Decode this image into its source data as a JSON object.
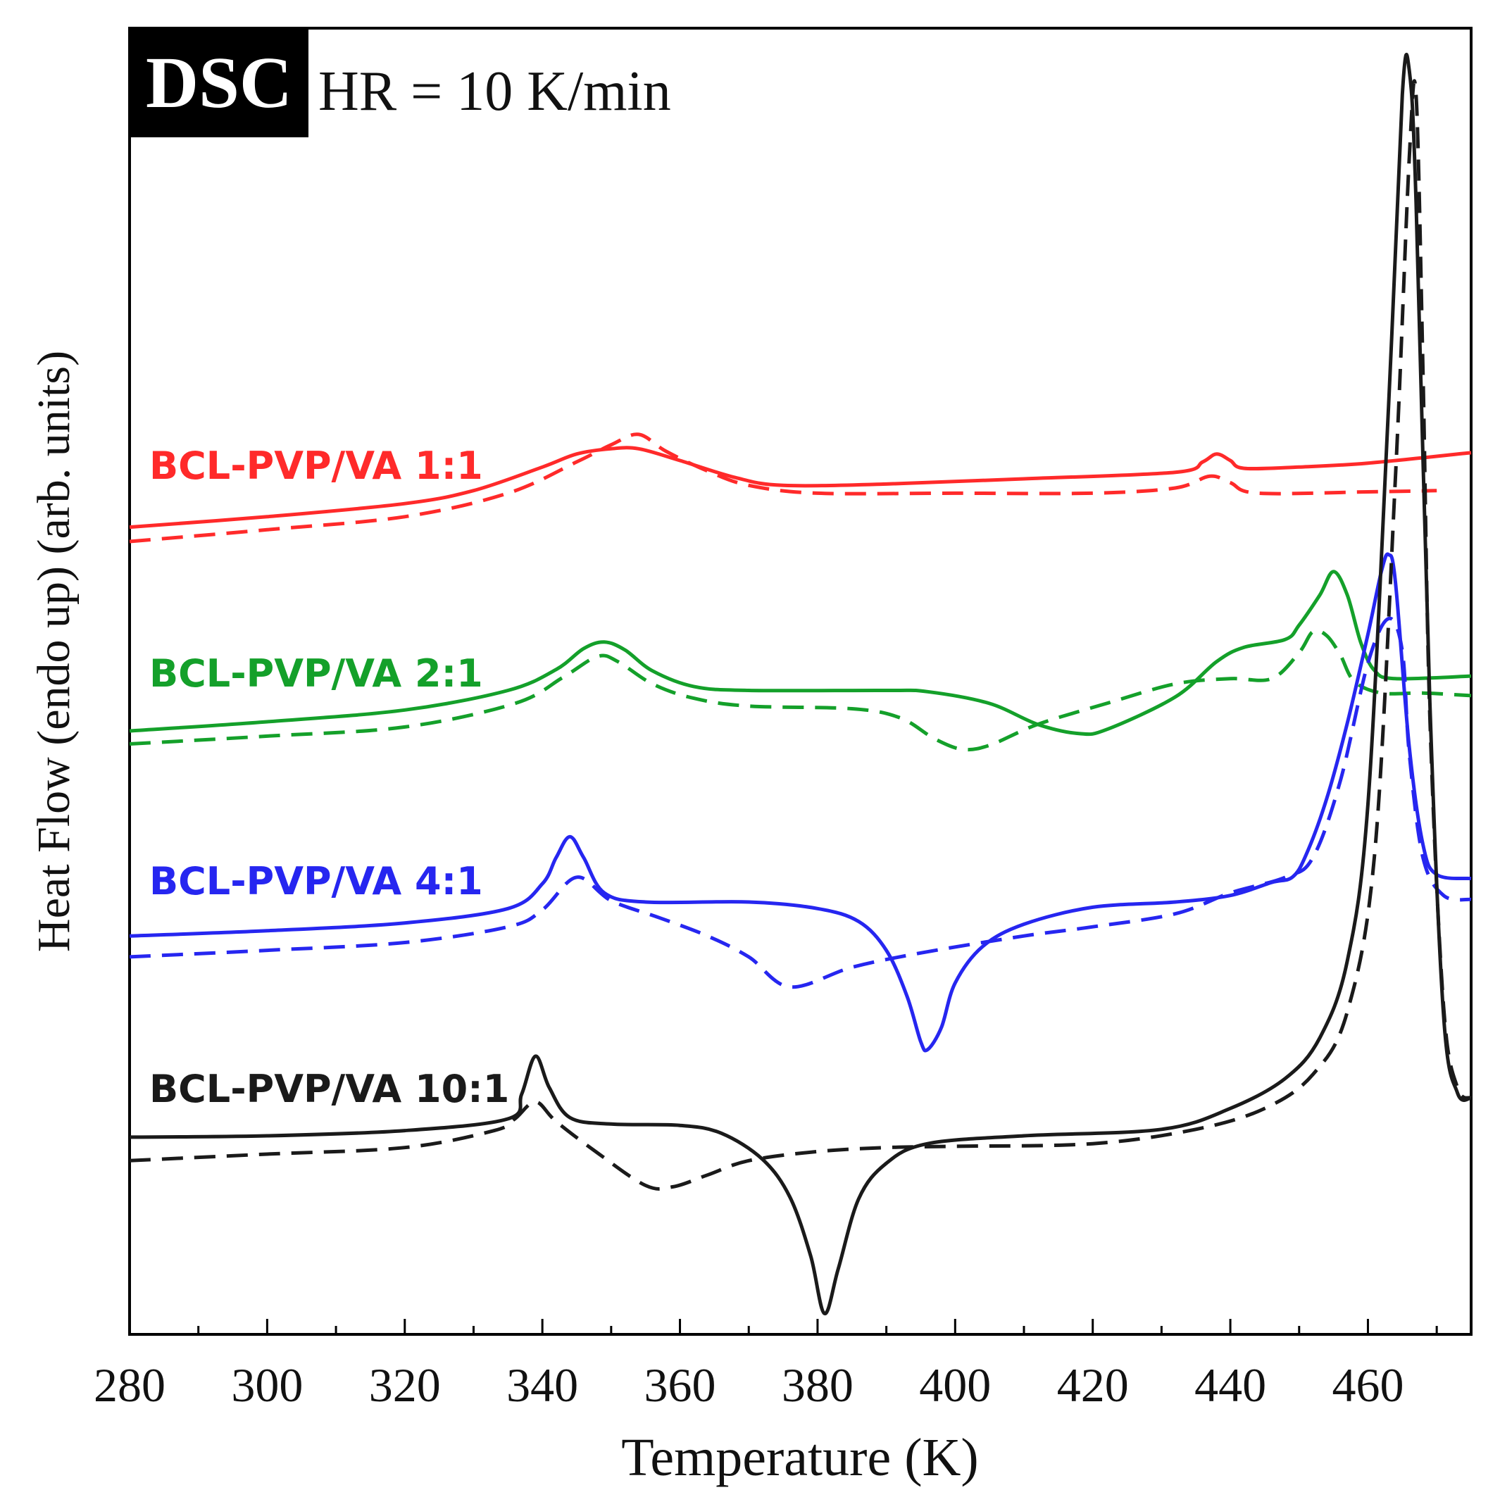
{
  "chart_data": {
    "type": "line",
    "panel_tag": "DSC",
    "subtitle": "HR = 10 K/min",
    "xlabel": "Temperature (K)",
    "ylabel": "Heat Flow (endo up) (arb. units)",
    "xlim": [
      280,
      475
    ],
    "ylim": [
      0,
      100
    ],
    "x_ticks": [
      280,
      300,
      320,
      340,
      360,
      380,
      400,
      420,
      440,
      460
    ],
    "x_tick_labels": [
      "280",
      "300",
      "320",
      "340",
      "360",
      "380",
      "400",
      "420",
      "440",
      "460"
    ],
    "y_tick_labels": false,
    "grid": false,
    "legend": "inline labels at left, one per curve group",
    "series": [
      {
        "name": "BCL-PVP/VA 1:1",
        "color": "#ff2a2a",
        "style": "solid",
        "points": [
          [
            280,
            61.8
          ],
          [
            300,
            62.6
          ],
          [
            320,
            63.6
          ],
          [
            330,
            64.6
          ],
          [
            340,
            66.4
          ],
          [
            345,
            67.4
          ],
          [
            350,
            67.8
          ],
          [
            354,
            67.8
          ],
          [
            360,
            66.9
          ],
          [
            368,
            65.6
          ],
          [
            375,
            65.0
          ],
          [
            390,
            65.1
          ],
          [
            410,
            65.5
          ],
          [
            432,
            66.0
          ],
          [
            436,
            66.8
          ],
          [
            438,
            67.4
          ],
          [
            440,
            66.9
          ],
          [
            442,
            66.3
          ],
          [
            450,
            66.4
          ],
          [
            460,
            66.7
          ],
          [
            475,
            67.5
          ]
        ]
      },
      {
        "name": "BCL-PVP/VA 1:1",
        "color": "#ff2a2a",
        "style": "dashed",
        "points": [
          [
            280,
            60.7
          ],
          [
            300,
            61.6
          ],
          [
            320,
            62.6
          ],
          [
            335,
            64.4
          ],
          [
            345,
            66.8
          ],
          [
            350,
            68.1
          ],
          [
            354,
            68.9
          ],
          [
            358,
            67.6
          ],
          [
            364,
            66.1
          ],
          [
            370,
            65.0
          ],
          [
            380,
            64.4
          ],
          [
            400,
            64.4
          ],
          [
            420,
            64.4
          ],
          [
            432,
            64.8
          ],
          [
            437,
            65.7
          ],
          [
            440,
            65.2
          ],
          [
            444,
            64.4
          ],
          [
            460,
            64.5
          ],
          [
            470,
            64.6
          ]
        ]
      },
      {
        "name": "BCL-PVP/VA 2:1",
        "color": "#14a02a",
        "style": "solid",
        "points": [
          [
            280,
            46.2
          ],
          [
            300,
            46.9
          ],
          [
            320,
            47.8
          ],
          [
            335,
            49.3
          ],
          [
            342,
            50.9
          ],
          [
            346,
            52.5
          ],
          [
            349,
            53.0
          ],
          [
            352,
            52.4
          ],
          [
            356,
            50.8
          ],
          [
            362,
            49.6
          ],
          [
            370,
            49.3
          ],
          [
            390,
            49.3
          ],
          [
            396,
            49.2
          ],
          [
            405,
            48.3
          ],
          [
            412,
            46.7
          ],
          [
            418,
            46.0
          ],
          [
            422,
            46.3
          ],
          [
            432,
            48.8
          ],
          [
            438,
            51.5
          ],
          [
            442,
            52.6
          ],
          [
            448,
            53.2
          ],
          [
            450,
            54.3
          ],
          [
            453,
            56.6
          ],
          [
            455,
            58.4
          ],
          [
            457,
            56.6
          ],
          [
            459,
            52.9
          ],
          [
            461,
            50.8
          ],
          [
            464,
            50.2
          ],
          [
            475,
            50.4
          ]
        ]
      },
      {
        "name": "BCL-PVP/VA 2:1",
        "color": "#14a02a",
        "style": "dashed",
        "points": [
          [
            280,
            45.2
          ],
          [
            300,
            45.8
          ],
          [
            320,
            46.5
          ],
          [
            336,
            48.3
          ],
          [
            343,
            50.3
          ],
          [
            348,
            51.9
          ],
          [
            351,
            51.5
          ],
          [
            356,
            49.8
          ],
          [
            362,
            48.7
          ],
          [
            370,
            48.1
          ],
          [
            385,
            47.9
          ],
          [
            392,
            47.2
          ],
          [
            397,
            45.6
          ],
          [
            401,
            44.8
          ],
          [
            405,
            45.1
          ],
          [
            412,
            46.7
          ],
          [
            422,
            48.3
          ],
          [
            432,
            49.8
          ],
          [
            440,
            50.2
          ],
          [
            446,
            50.2
          ],
          [
            450,
            52.2
          ],
          [
            452,
            53.8
          ],
          [
            454,
            53.5
          ],
          [
            456,
            52.0
          ],
          [
            458,
            50.0
          ],
          [
            462,
            49.1
          ],
          [
            468,
            49.1
          ],
          [
            475,
            48.9
          ]
        ]
      },
      {
        "name": "BCL-PVP/VA 4:1",
        "color": "#2626f0",
        "style": "solid",
        "points": [
          [
            280,
            30.5
          ],
          [
            300,
            30.9
          ],
          [
            320,
            31.5
          ],
          [
            335,
            32.6
          ],
          [
            340,
            34.5
          ],
          [
            342,
            36.5
          ],
          [
            344,
            38.1
          ],
          [
            346,
            36.5
          ],
          [
            349,
            33.8
          ],
          [
            355,
            33.1
          ],
          [
            370,
            33.1
          ],
          [
            380,
            32.6
          ],
          [
            386,
            31.6
          ],
          [
            390,
            29.4
          ],
          [
            393,
            25.9
          ],
          [
            395,
            22.4
          ],
          [
            396,
            21.8
          ],
          [
            398,
            23.5
          ],
          [
            400,
            26.9
          ],
          [
            404,
            29.7
          ],
          [
            410,
            31.4
          ],
          [
            420,
            32.7
          ],
          [
            432,
            33.1
          ],
          [
            440,
            33.6
          ],
          [
            446,
            34.6
          ],
          [
            449,
            35.0
          ],
          [
            451,
            36.7
          ],
          [
            454,
            41.0
          ],
          [
            457,
            46.8
          ],
          [
            460,
            53.6
          ],
          [
            462,
            58.5
          ],
          [
            463,
            59.7
          ],
          [
            464,
            57.6
          ],
          [
            466,
            45.0
          ],
          [
            468,
            37.5
          ],
          [
            470,
            35.2
          ],
          [
            475,
            34.9
          ]
        ]
      },
      {
        "name": "BCL-PVP/VA 4:1",
        "color": "#2626f0",
        "style": "dashed",
        "points": [
          [
            280,
            28.9
          ],
          [
            300,
            29.4
          ],
          [
            320,
            30.0
          ],
          [
            335,
            31.2
          ],
          [
            340,
            32.5
          ],
          [
            345,
            35.0
          ],
          [
            350,
            33.2
          ],
          [
            357,
            31.9
          ],
          [
            364,
            30.5
          ],
          [
            370,
            28.9
          ],
          [
            376,
            26.6
          ],
          [
            385,
            28.1
          ],
          [
            395,
            29.2
          ],
          [
            410,
            30.5
          ],
          [
            420,
            31.2
          ],
          [
            432,
            32.2
          ],
          [
            440,
            33.8
          ],
          [
            448,
            35.0
          ],
          [
            452,
            36.5
          ],
          [
            456,
            42.4
          ],
          [
            460,
            51.4
          ],
          [
            463,
            54.8
          ],
          [
            465,
            52.3
          ],
          [
            466,
            44.5
          ],
          [
            468,
            36.5
          ],
          [
            471,
            33.6
          ],
          [
            475,
            33.3
          ]
        ]
      },
      {
        "name": "BCL-PVP/VA 10:1",
        "color": "#1a1a1a",
        "style": "solid",
        "points": [
          [
            280,
            15.1
          ],
          [
            300,
            15.2
          ],
          [
            320,
            15.6
          ],
          [
            335,
            16.5
          ],
          [
            337,
            18.4
          ],
          [
            339,
            21.3
          ],
          [
            341,
            18.9
          ],
          [
            344,
            16.6
          ],
          [
            350,
            16.1
          ],
          [
            360,
            16.0
          ],
          [
            366,
            15.4
          ],
          [
            372,
            13.4
          ],
          [
            376,
            10.5
          ],
          [
            379,
            6.0
          ],
          [
            381,
            1.6
          ],
          [
            383,
            5.0
          ],
          [
            386,
            10.4
          ],
          [
            390,
            13.1
          ],
          [
            396,
            14.6
          ],
          [
            410,
            15.2
          ],
          [
            430,
            15.7
          ],
          [
            440,
            17.3
          ],
          [
            448,
            19.6
          ],
          [
            453,
            22.7
          ],
          [
            457,
            28.6
          ],
          [
            460,
            40.6
          ],
          [
            463,
            71.1
          ],
          [
            465,
            94.9
          ],
          [
            466,
            96.8
          ],
          [
            467,
            86.7
          ],
          [
            469,
            48.4
          ],
          [
            471,
            24.4
          ],
          [
            473,
            18.5
          ],
          [
            475,
            18.1
          ]
        ]
      },
      {
        "name": "BCL-PVP/VA 10:1",
        "color": "#1a1a1a",
        "style": "dashed",
        "points": [
          [
            280,
            13.3
          ],
          [
            300,
            13.8
          ],
          [
            320,
            14.3
          ],
          [
            333,
            15.6
          ],
          [
            336,
            16.5
          ],
          [
            339,
            17.8
          ],
          [
            342,
            16.3
          ],
          [
            348,
            13.9
          ],
          [
            355,
            11.4
          ],
          [
            359,
            11.3
          ],
          [
            364,
            12.2
          ],
          [
            370,
            13.3
          ],
          [
            380,
            14.0
          ],
          [
            390,
            14.3
          ],
          [
            400,
            14.4
          ],
          [
            420,
            14.6
          ],
          [
            435,
            15.7
          ],
          [
            445,
            17.3
          ],
          [
            452,
            19.9
          ],
          [
            457,
            24.7
          ],
          [
            461,
            36.9
          ],
          [
            464,
            65.6
          ],
          [
            466,
            90.0
          ],
          [
            467,
            94.9
          ],
          [
            468,
            73.8
          ],
          [
            469,
            47.3
          ],
          [
            471,
            25.1
          ],
          [
            473,
            18.9
          ],
          [
            475,
            18.1
          ]
        ]
      }
    ]
  }
}
